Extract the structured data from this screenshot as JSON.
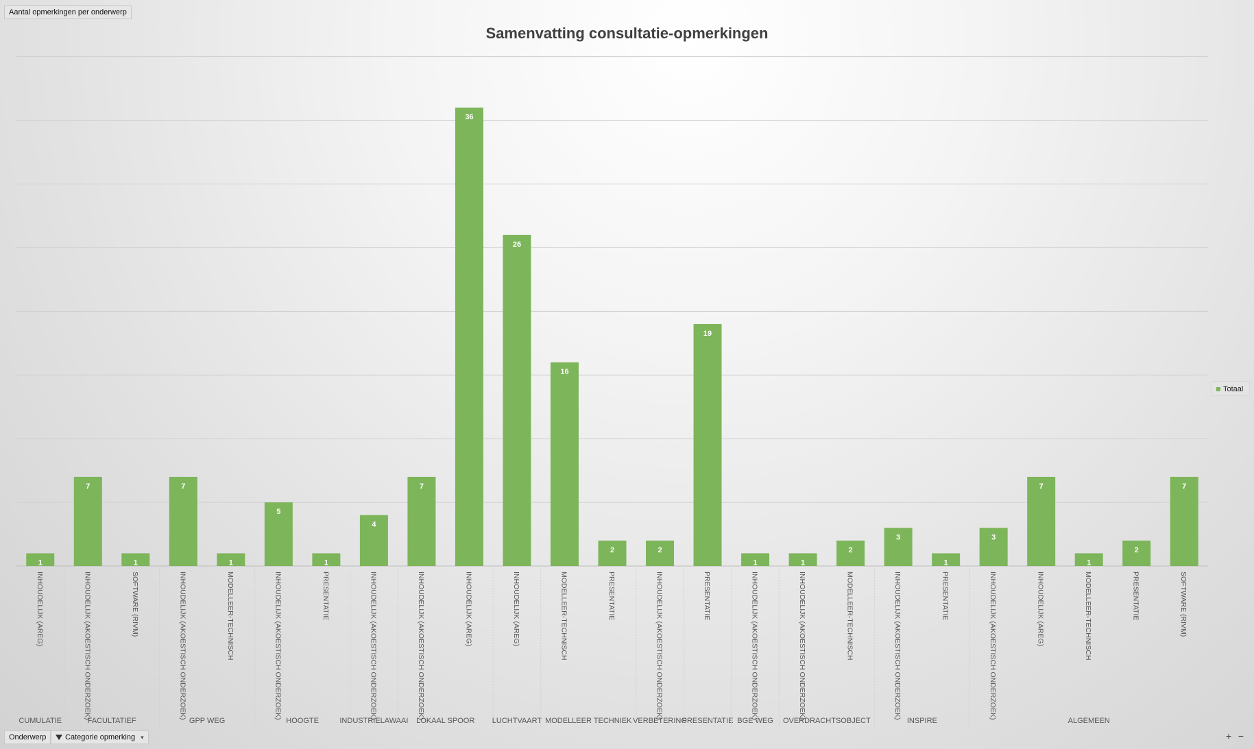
{
  "header": {
    "field_button": "Aantal opmerkingen per onderwerp"
  },
  "footer": {
    "field_onderwerp": "Onderwerp",
    "field_categorie": "Categorie opmerking",
    "zoom_in": "+",
    "zoom_out": "−"
  },
  "colors": {
    "bar": "#7db55a"
  },
  "chart_data": {
    "type": "bar",
    "title": "Samenvatting consultatie-opmerkingen",
    "xlabel": "",
    "ylabel": "",
    "ylim": [
      0,
      40
    ],
    "gridlines": true,
    "legend_position": "right",
    "series": [
      {
        "name": "Totaal",
        "values": [
          1,
          7,
          1,
          7,
          1,
          5,
          1,
          4,
          7,
          36,
          26,
          16,
          2,
          2,
          19,
          1,
          1,
          2,
          3,
          1,
          3,
          7,
          1,
          2,
          7
        ]
      }
    ],
    "categories": [
      "INHOUDELIJK (AREG)",
      "INHOUDELIJK (AKOESTISCH ONDERZOEK)",
      "SOFTWARE (RIVM)",
      "INHOUDELIJK (AKOESTISCH ONDERZOEK)",
      "MODELLEER-TECHNISCH",
      "INHOUDELIJK (AKOESTISCH ONDERZOEK)",
      "PRESENTATIE",
      "INHOUDELIJK (AKOESTISCH ONDERZOEK)",
      "INHOUDELIJK (AKOESTISCH ONDERZOEK)",
      "INHOUDELIJK (AREG)",
      "INHOUDELIJK (AREG)",
      "MODELLEER-TECHNISCH",
      "PRESENTATIE",
      "INHOUDELIJK (AKOESTISCH ONDERZOEK)",
      "PRESENTATIE",
      "INHOUDELIJK (AKOESTISCH ONDERZOEK)",
      "INHOUDELIJK (AKOESTISCH ONDERZOEK)",
      "MODELLEER-TECHNISCH",
      "INHOUDELIJK (AKOESTISCH ONDERZOEK)",
      "PRESENTATIE",
      "INHOUDELIJK (AKOESTISCH ONDERZOEK)",
      "INHOUDELIJK (AREG)",
      "MODELLEER-TECHNISCH",
      "PRESENTATIE",
      "SOFTWARE (RIVM)"
    ],
    "groups": [
      {
        "label": "CUMULATIE",
        "count": 1
      },
      {
        "label": "FACULTATIEF",
        "count": 2
      },
      {
        "label": "GPP WEG",
        "count": 2
      },
      {
        "label": "HOOGTE",
        "count": 2
      },
      {
        "label": "INDUSTRIELAWAAI",
        "count": 1
      },
      {
        "label": "LOKAAL SPOOR",
        "count": 2
      },
      {
        "label": "LUCHTVAART",
        "count": 1
      },
      {
        "label": "MODELLEER TECHNIEK",
        "count": 2
      },
      {
        "label": "VERBETERING",
        "count": 1
      },
      {
        "label": "PRESENTATIE",
        "count": 1
      },
      {
        "label": "BGE WEG",
        "count": 1
      },
      {
        "label": "OVERDRACHTSOBJECT",
        "count": 2
      },
      {
        "label": "INSPIRE",
        "count": 2
      },
      {
        "label": "ALGEMEEN",
        "count": 5
      }
    ]
  }
}
